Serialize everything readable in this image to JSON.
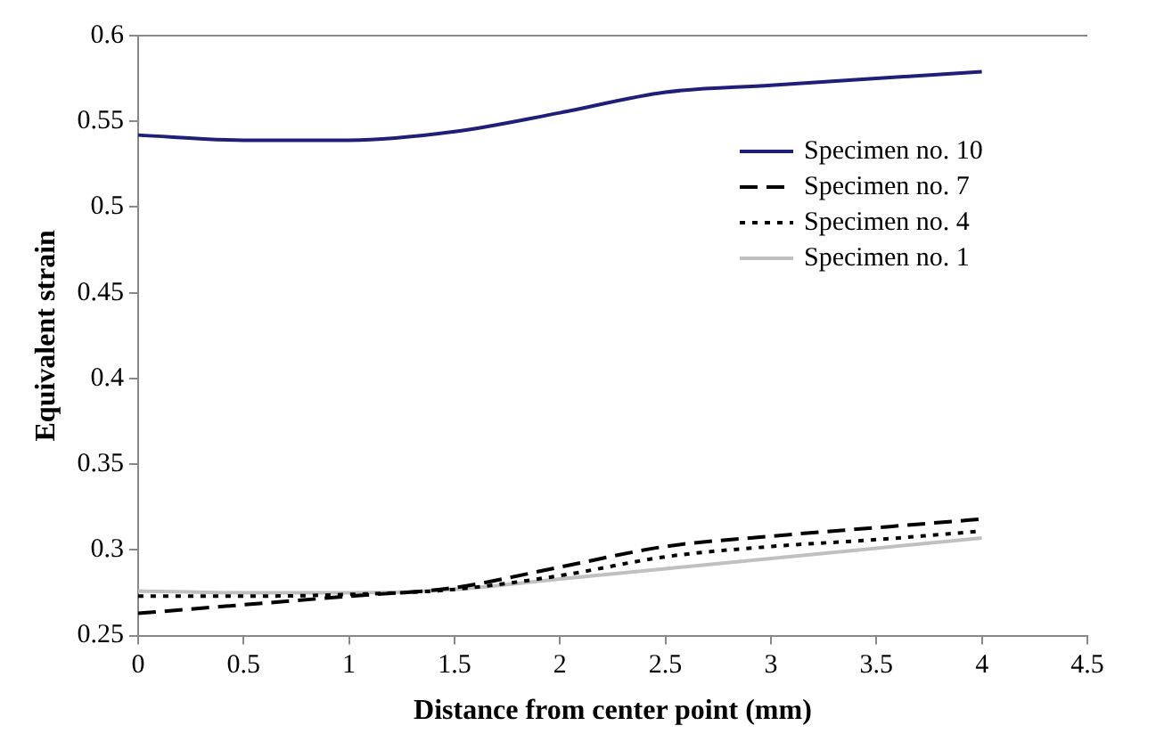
{
  "chart_data": {
    "type": "line",
    "xlabel": "Distance from center point (mm)",
    "ylabel": "Equivalent strain",
    "x": [
      0,
      0.5,
      1,
      1.5,
      2,
      2.5,
      3,
      3.5,
      4
    ],
    "xlim": [
      0,
      4.5
    ],
    "xticks": [
      0,
      0.5,
      1,
      1.5,
      2,
      2.5,
      3,
      3.5,
      4,
      4.5
    ],
    "ylim": [
      0.25,
      0.6
    ],
    "yticks": [
      0.25,
      0.3,
      0.35,
      0.4,
      0.45,
      0.5,
      0.55,
      0.6
    ],
    "grid": false,
    "legend": "top right",
    "marker": "none",
    "series": [
      {
        "name": "Specimen no. 10",
        "color": "#1f1f7a",
        "line_style": "solid",
        "values": [
          0.542,
          0.539,
          0.539,
          0.544,
          0.555,
          0.567,
          0.571,
          0.575,
          0.579
        ]
      },
      {
        "name": "Specimen no. 7",
        "color": "#000000",
        "line_style": "dashed",
        "values": [
          0.263,
          0.268,
          0.273,
          0.278,
          0.29,
          0.302,
          0.308,
          0.313,
          0.318
        ]
      },
      {
        "name": "Specimen no. 4",
        "color": "#000000",
        "line_style": "dotted",
        "values": [
          0.273,
          0.273,
          0.274,
          0.277,
          0.285,
          0.296,
          0.302,
          0.306,
          0.311
        ]
      },
      {
        "name": "Specimen no. 1",
        "color": "#c0c0c0",
        "line_style": "solid",
        "values": [
          0.276,
          0.275,
          0.275,
          0.277,
          0.283,
          0.289,
          0.295,
          0.301,
          0.307
        ]
      }
    ]
  }
}
